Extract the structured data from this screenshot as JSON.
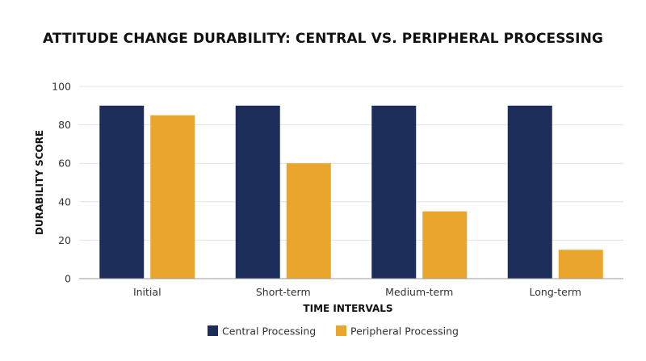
{
  "chart_data": {
    "type": "bar",
    "title": "ATTITUDE CHANGE DURABILITY: CENTRAL VS. PERIPHERAL PROCESSING",
    "xlabel": "TIME INTERVALS",
    "ylabel": "DURABILITY SCORE",
    "categories": [
      "Initial",
      "Short-term",
      "Medium-term",
      "Long-term"
    ],
    "series": [
      {
        "name": "Central Processing",
        "values": [
          90,
          90,
          90,
          90
        ],
        "color": "#1c2d5a"
      },
      {
        "name": "Peripheral Processing",
        "values": [
          85,
          60,
          35,
          15
        ],
        "color": "#e9a52c"
      }
    ],
    "ylim": [
      0,
      100
    ],
    "yticks": [
      0,
      20,
      40,
      60,
      80,
      100
    ],
    "grid": true,
    "legend": "bottom-center"
  }
}
